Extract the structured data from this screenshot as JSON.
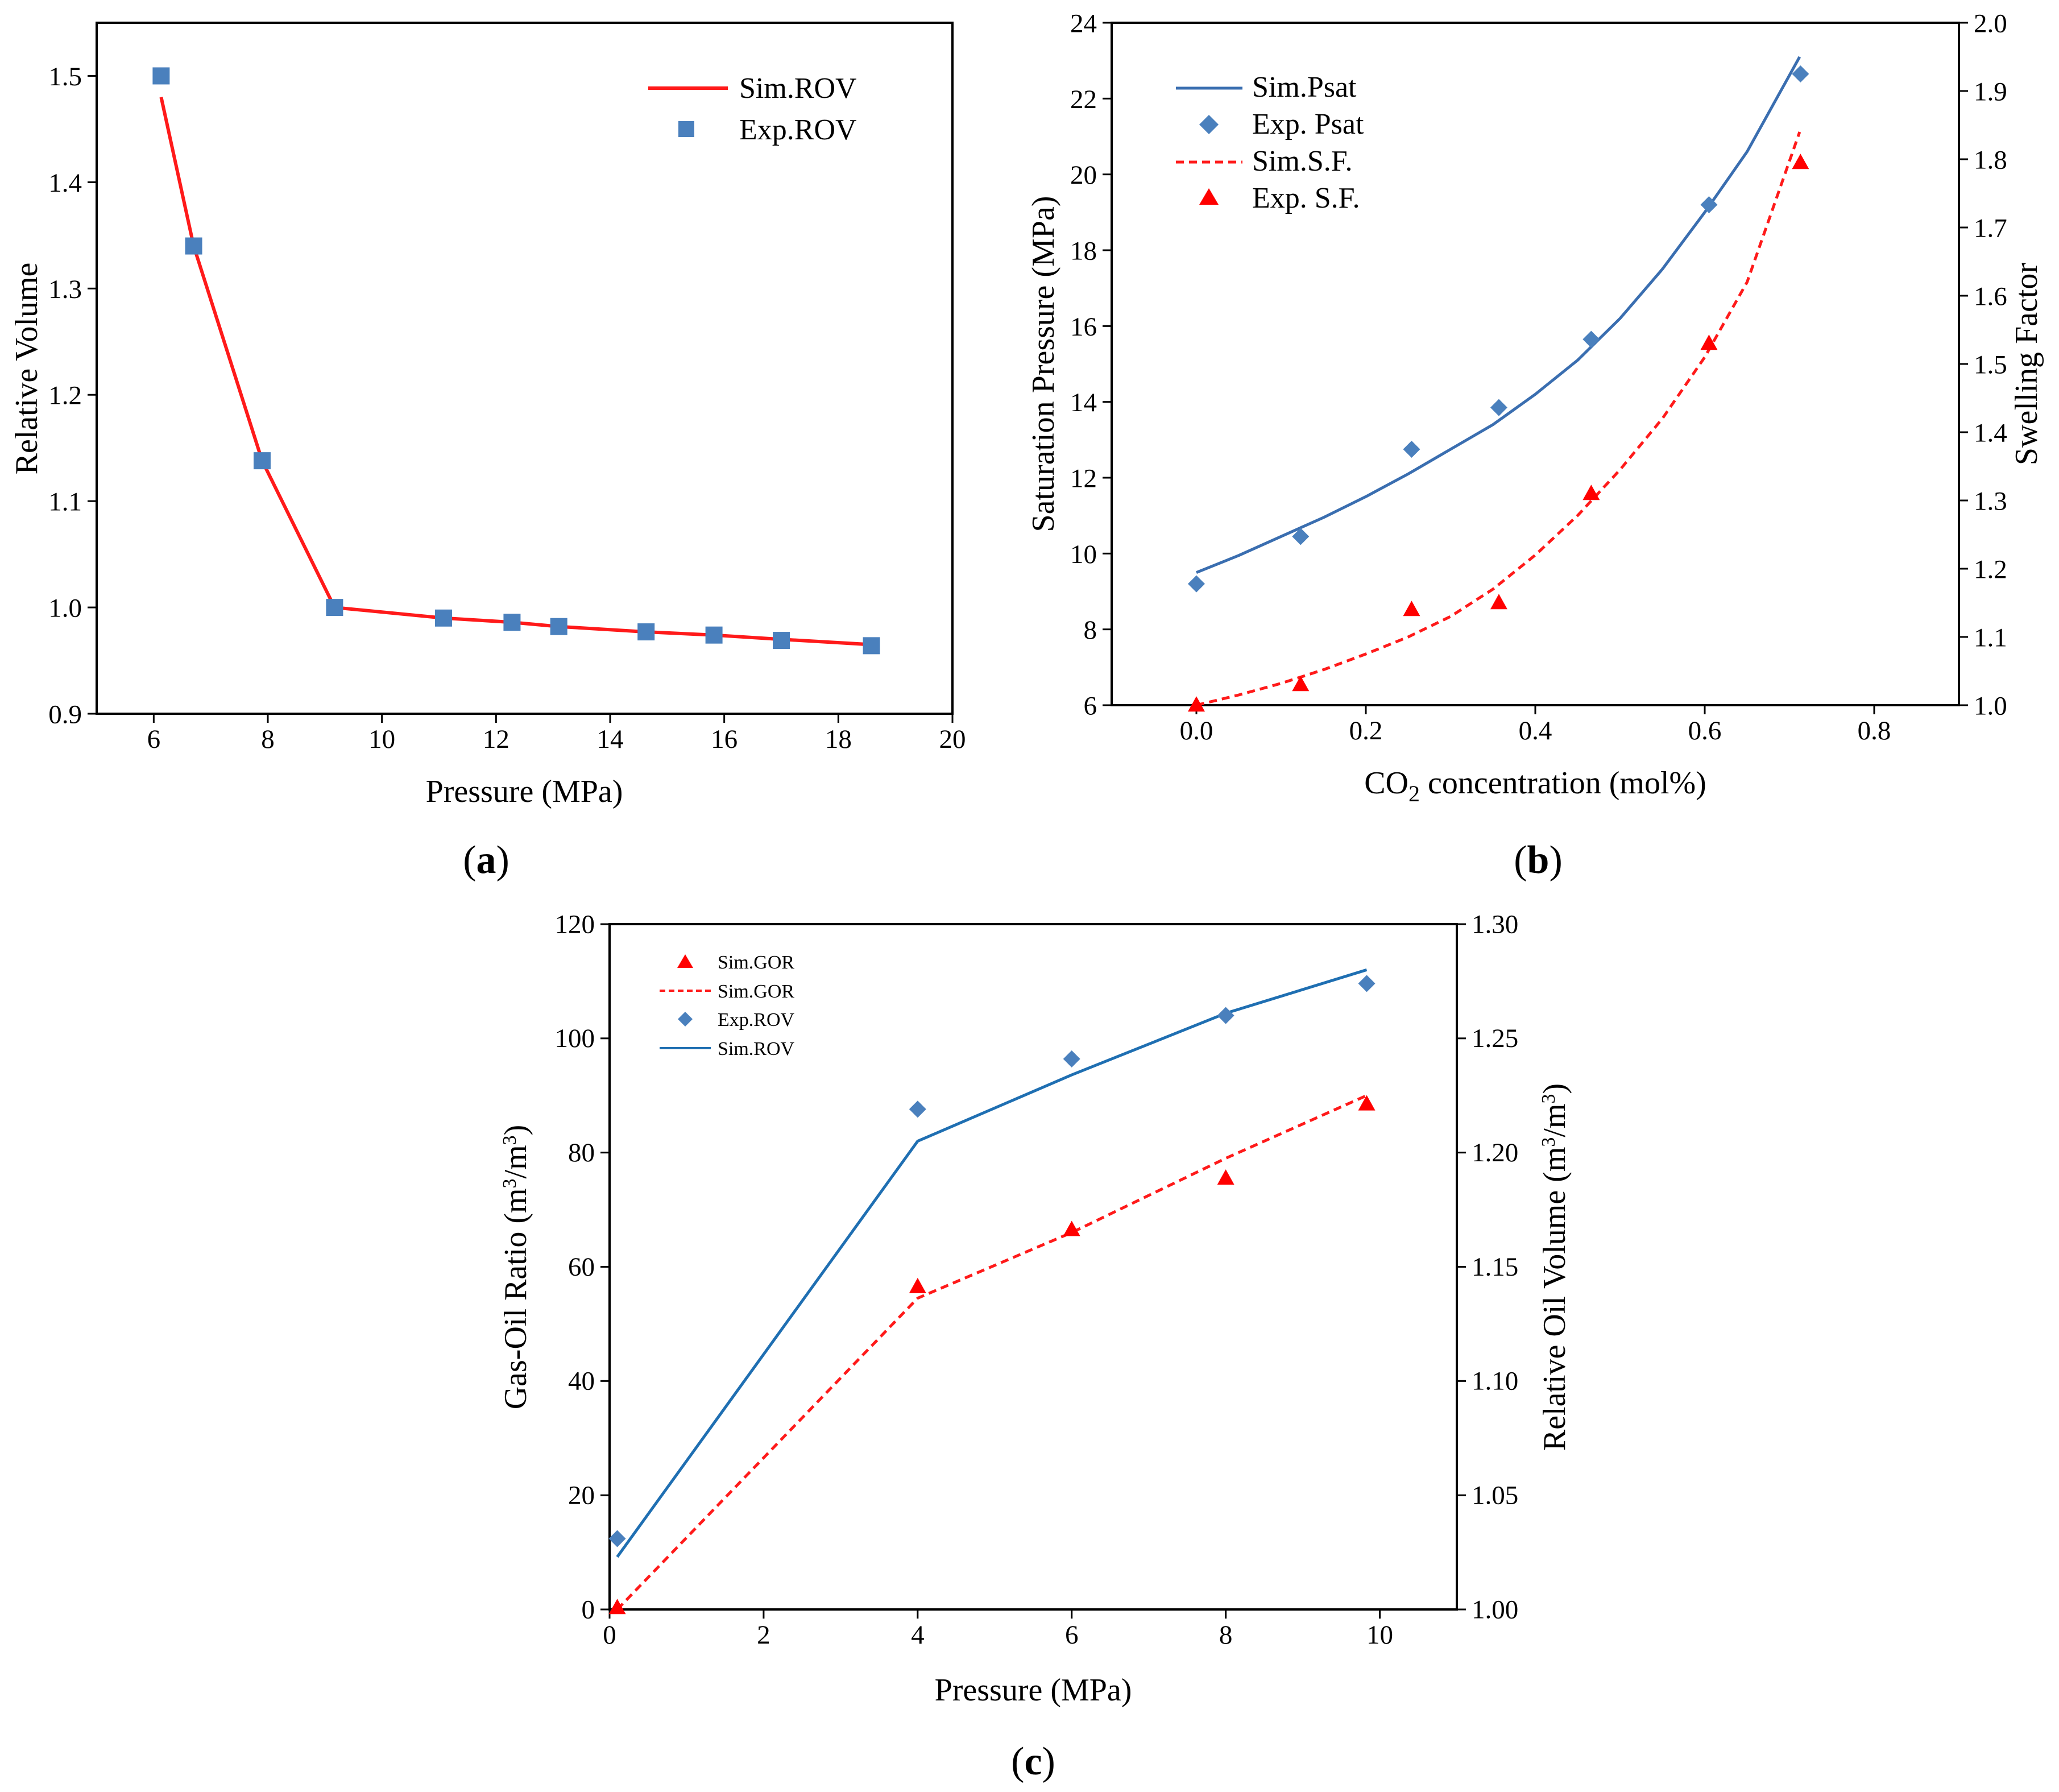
{
  "figure": {
    "panels": [
      {
        "id": "a",
        "letter": "a",
        "open": "(",
        "close": ")"
      },
      {
        "id": "b",
        "letter": "b",
        "open": "(",
        "close": ")"
      },
      {
        "id": "c",
        "letter": "c",
        "open": "(",
        "close": ")"
      }
    ]
  },
  "colors": {
    "sim_red": "#ff1a1a",
    "exp_red": "#ff0000",
    "sim_blue": "#1f6fb2",
    "exp_blue": "#4a80bd",
    "axis": "#000000"
  },
  "chart_data": [
    {
      "id": "a",
      "type": "line",
      "panel_label": "a",
      "xlabel": "Pressure (MPa)",
      "ylabel": "Relative Volume",
      "xlim": [
        5,
        20
      ],
      "ylim": [
        0.9,
        1.55
      ],
      "xticks": [
        6,
        8,
        10,
        12,
        14,
        16,
        18,
        20
      ],
      "xtick_labels": [
        "6",
        "8",
        "10",
        "12",
        "14",
        "16",
        "18",
        "20"
      ],
      "yticks": [
        0.9,
        1.0,
        1.1,
        1.2,
        1.3,
        1.4,
        1.5
      ],
      "ytick_labels": [
        "0.9",
        "1.0",
        "1.1",
        "1.2",
        "1.3",
        "1.4",
        "1.5"
      ],
      "legend_position": "top-right",
      "series": [
        {
          "name": "Sim.ROV",
          "kind": "line",
          "color": "#ff1a1a",
          "x": [
            6.13,
            6.7,
            7.9,
            9.17,
            11.08,
            12.28,
            13.1,
            14.63,
            15.82,
            17.0,
            18.58
          ],
          "y": [
            1.48,
            1.34,
            1.138,
            1.0,
            0.99,
            0.986,
            0.982,
            0.977,
            0.974,
            0.97,
            0.965
          ]
        },
        {
          "name": "Exp.ROV",
          "kind": "scatter",
          "marker": "square",
          "color": "#4a80bd",
          "x": [
            6.13,
            6.7,
            7.9,
            9.17,
            11.08,
            12.28,
            13.1,
            14.63,
            15.82,
            17.0,
            18.58
          ],
          "y": [
            1.5,
            1.34,
            1.138,
            1.0,
            0.99,
            0.986,
            0.982,
            0.977,
            0.974,
            0.969,
            0.964
          ]
        }
      ]
    },
    {
      "id": "b",
      "type": "line",
      "panel_label": "b",
      "xlabel_main": "CO",
      "xlabel_sub": "2",
      "xlabel_rest": " concentration (mol%)",
      "ylabel": "Saturation Pressure (MPa)",
      "y2label": "Swelling Factor",
      "xlim": [
        -0.1,
        0.9
      ],
      "ylim": [
        6,
        24
      ],
      "y2lim": [
        1.0,
        2.0
      ],
      "xticks": [
        0.0,
        0.2,
        0.4,
        0.6,
        0.8
      ],
      "xtick_labels": [
        "0.0",
        "0.2",
        "0.4",
        "0.6",
        "0.8"
      ],
      "yticks": [
        6,
        8,
        10,
        12,
        14,
        16,
        18,
        20,
        22,
        24
      ],
      "ytick_labels": [
        "6",
        "8",
        "10",
        "12",
        "14",
        "16",
        "18",
        "20",
        "22",
        "24"
      ],
      "y2ticks": [
        1.0,
        1.1,
        1.2,
        1.3,
        1.4,
        1.5,
        1.6,
        1.7,
        1.8,
        1.9,
        2.0
      ],
      "y2tick_labels": [
        "1.0",
        "1.1",
        "1.2",
        "1.3",
        "1.4",
        "1.5",
        "1.6",
        "1.7",
        "1.8",
        "1.9",
        "2.0"
      ],
      "legend_position": "top-left",
      "series": [
        {
          "name": "Sim.Psat",
          "kind": "line",
          "axis": "left",
          "color": "#3a6eb0",
          "x": [
            0.0,
            0.05,
            0.1,
            0.15,
            0.2,
            0.25,
            0.3,
            0.35,
            0.4,
            0.45,
            0.5,
            0.55,
            0.6,
            0.65,
            0.712
          ],
          "y": [
            9.5,
            9.95,
            10.45,
            10.95,
            11.5,
            12.1,
            12.75,
            13.4,
            14.2,
            15.1,
            16.2,
            17.5,
            19.0,
            20.6,
            23.1
          ]
        },
        {
          "name": "Exp. Psat",
          "kind": "scatter",
          "marker": "diamond",
          "axis": "left",
          "color": "#4a80bd",
          "x": [
            0.0,
            0.123,
            0.254,
            0.357,
            0.466,
            0.605,
            0.713
          ],
          "y": [
            9.2,
            10.45,
            12.75,
            13.85,
            15.65,
            19.2,
            22.65
          ]
        },
        {
          "name": "Sim.S.F.",
          "kind": "dashed-line",
          "axis": "right",
          "color": "#ff1a1a",
          "x": [
            0.0,
            0.05,
            0.1,
            0.15,
            0.2,
            0.25,
            0.3,
            0.35,
            0.4,
            0.45,
            0.5,
            0.55,
            0.6,
            0.65,
            0.712
          ],
          "y": [
            1.0,
            1.015,
            1.032,
            1.052,
            1.075,
            1.1,
            1.13,
            1.17,
            1.22,
            1.278,
            1.345,
            1.42,
            1.51,
            1.62,
            1.84
          ]
        },
        {
          "name": "Exp. S.F.",
          "kind": "scatter",
          "marker": "triangle",
          "axis": "right",
          "color": "#ff0000",
          "x": [
            0.0,
            0.123,
            0.254,
            0.357,
            0.466,
            0.605,
            0.713
          ],
          "y": [
            1.0,
            1.03,
            1.14,
            1.15,
            1.31,
            1.53,
            1.795
          ]
        }
      ]
    },
    {
      "id": "c",
      "type": "line",
      "panel_label": "c",
      "xlabel": "Pressure (MPa)",
      "ylabel_main": "Gas-Oil Ratio (m",
      "ylabel_sup1": "3",
      "ylabel_mid": "/m",
      "ylabel_sup2": "3",
      "ylabel_end": ")",
      "y2label_main": "Relative Oil Volume (m",
      "y2label_sup1": "3",
      "y2label_mid": "/m",
      "y2label_sup2": "3",
      "y2label_end": ")",
      "xlim": [
        0,
        11
      ],
      "ylim": [
        0,
        120
      ],
      "y2lim": [
        1.0,
        1.3
      ],
      "xticks": [
        0,
        2,
        4,
        6,
        8,
        10
      ],
      "xtick_labels": [
        "0",
        "2",
        "4",
        "6",
        "8",
        "10"
      ],
      "yticks": [
        0,
        20,
        40,
        60,
        80,
        100,
        120
      ],
      "ytick_labels": [
        "0",
        "20",
        "40",
        "60",
        "80",
        "100",
        "120"
      ],
      "y2ticks": [
        1.0,
        1.05,
        1.1,
        1.15,
        1.2,
        1.25,
        1.3
      ],
      "y2tick_labels": [
        "1.00",
        "1.05",
        "1.10",
        "1.15",
        "1.20",
        "1.25",
        "1.30"
      ],
      "legend_position": "top-left",
      "series": [
        {
          "name": "Sim.GOR",
          "kind": "scatter",
          "marker": "triangle",
          "axis": "left",
          "color": "#ff0000",
          "x": [
            0.1,
            4.0,
            6.0,
            8.0,
            9.83
          ],
          "y": [
            0.3,
            56.5,
            66.5,
            75.5,
            88.5
          ]
        },
        {
          "name": "Sim.GOR",
          "kind": "dashed-line",
          "axis": "left",
          "color": "#ff1a1a",
          "x": [
            0.1,
            4.0,
            6.0,
            8.0,
            9.83
          ],
          "y": [
            0.0,
            54.5,
            66.0,
            79.0,
            90.0
          ]
        },
        {
          "name": "Exp.ROV",
          "kind": "scatter",
          "marker": "diamond",
          "axis": "right",
          "color": "#4a80bd",
          "x": [
            0.1,
            4.0,
            6.0,
            8.0,
            9.83
          ],
          "y": [
            1.031,
            1.219,
            1.241,
            1.26,
            1.274
          ]
        },
        {
          "name": "Sim.ROV",
          "kind": "line",
          "axis": "right",
          "color": "#1f6fb2",
          "x": [
            0.1,
            4.0,
            6.0,
            8.0,
            9.83
          ],
          "y": [
            1.023,
            1.205,
            1.234,
            1.261,
            1.28
          ]
        }
      ]
    }
  ]
}
